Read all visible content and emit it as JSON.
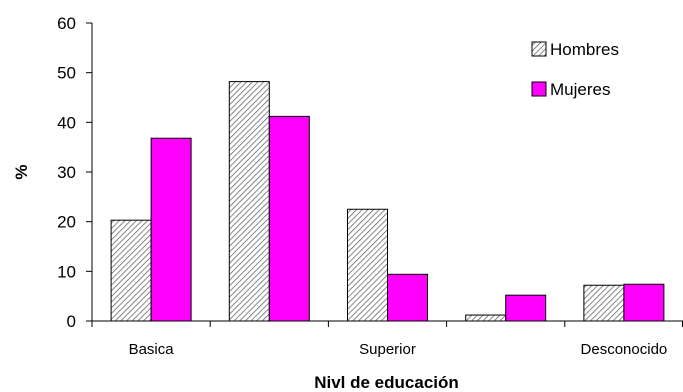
{
  "chart_data": {
    "type": "bar",
    "categories": [
      "Basica",
      "",
      "Superior",
      "",
      "Desconocido"
    ],
    "series": [
      {
        "name": "Hombres",
        "values": [
          20.3,
          48.2,
          22.5,
          1.2,
          7.2
        ],
        "color": "#ffffff",
        "pattern": "diagonal-hatch"
      },
      {
        "name": "Mujeres",
        "values": [
          36.8,
          41.2,
          9.4,
          5.2,
          7.4
        ],
        "color": "#ff00ff"
      }
    ],
    "title": "",
    "xlabel": "Nivl de educación",
    "ylabel": "%",
    "ylim": [
      0,
      60
    ],
    "yticks": [
      "0",
      "10",
      "20",
      "30",
      "40",
      "50",
      "60"
    ],
    "grid": false,
    "legend_position": "top-right"
  }
}
